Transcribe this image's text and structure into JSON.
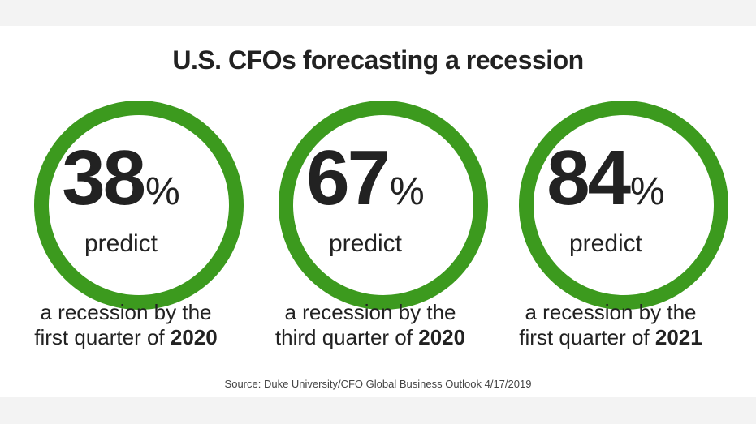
{
  "title": "U.S. CFOs forecasting a recession",
  "stats": [
    {
      "value": "38",
      "percent_sign": "%",
      "predict": "predict",
      "line1": "a recession by the",
      "line2_prefix": "first quarter of",
      "year": "2020"
    },
    {
      "value": "67",
      "percent_sign": "%",
      "predict": "predict",
      "line1": "a recession by the",
      "line2_prefix": "third quarter of",
      "year": "2020"
    },
    {
      "value": "84",
      "percent_sign": "%",
      "predict": "predict",
      "line1": "a recession by the",
      "line2_prefix": "first quarter of",
      "year": "2021"
    }
  ],
  "source": "Source: Duke University/CFO Global Business Outlook  4/17/2019",
  "colors": {
    "ring": "#3c9a1e",
    "text": "#222222",
    "background": "#ffffff"
  }
}
